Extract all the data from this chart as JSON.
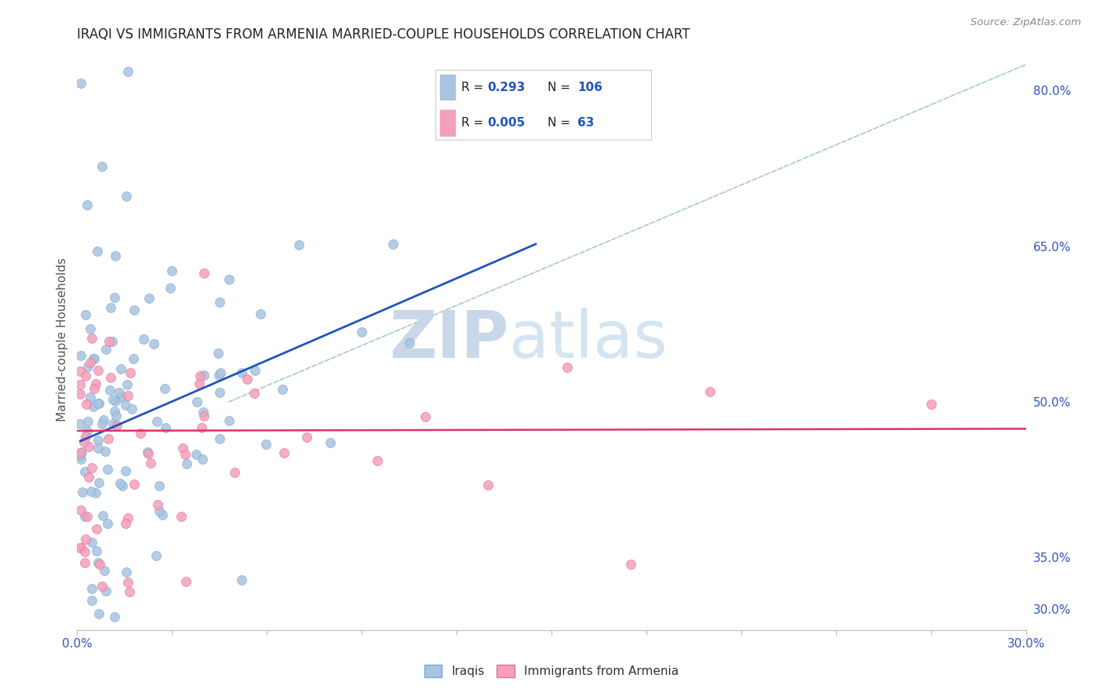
{
  "title": "IRAQI VS IMMIGRANTS FROM ARMENIA MARRIED-COUPLE HOUSEHOLDS CORRELATION CHART",
  "source": "Source: ZipAtlas.com",
  "ylabel": "Married-couple Households",
  "xlim": [
    0.0,
    0.3
  ],
  "ylim": [
    0.28,
    0.84
  ],
  "right_yticks": [
    0.8,
    0.65,
    0.5,
    0.35,
    0.3
  ],
  "right_yticklabels": [
    "80.0%",
    "65.0%",
    "50.0%",
    "35.0%",
    "30.0%"
  ],
  "legend_R1": "0.293",
  "legend_N1": "106",
  "legend_R2": "0.005",
  "legend_N2": "63",
  "color_iraqis": "#a8c4e0",
  "color_iraqis_edge": "#7aaad0",
  "color_armenia": "#f4a0b8",
  "color_armenia_edge": "#e070a0",
  "color_line1": "#2255bb",
  "color_line2": "#dd3366",
  "color_dashed": "#a0c0d8",
  "background_color": "#ffffff",
  "watermark_zip": "ZIP",
  "watermark_atlas": "atlas",
  "grid_color": "#dddddd",
  "title_color": "#222222",
  "source_color": "#888888",
  "ylabel_color": "#555555",
  "tick_color": "#3355bb",
  "legend_text_color": "#222222",
  "legend_val_color": "#2255bb",
  "blue_line_x0": 0.001,
  "blue_line_y0": 0.462,
  "blue_line_x1": 0.145,
  "blue_line_y1": 0.652,
  "pink_line_x0": 0.0,
  "pink_line_y0": 0.472,
  "pink_line_x1": 0.3,
  "pink_line_y1": 0.474
}
